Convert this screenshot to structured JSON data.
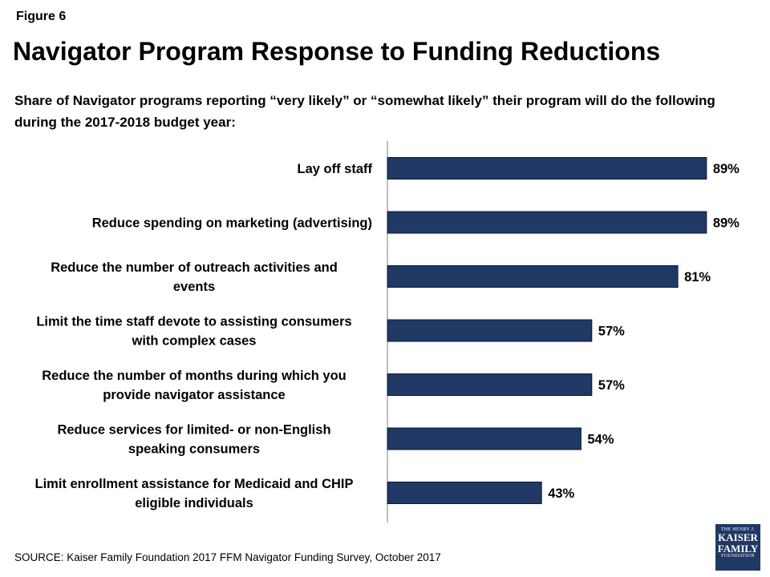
{
  "figure_label": "Figure 6",
  "title": "Navigator Program Response to Funding Reductions",
  "subtitle": "Share of Navigator programs reporting “very likely” or “somewhat likely” their program will do the following during the 2017-2018 budget year:",
  "source": "SOURCE: Kaiser Family Foundation 2017 FFM Navigator Funding Survey, October 2017",
  "logo": {
    "line1": "THE HENRY J.",
    "line2": "KAISER",
    "line3": "FAMILY",
    "line4": "FOUNDATION"
  },
  "colors": {
    "bar": "#1f3864",
    "axis": "#7f7f7f"
  },
  "chart_data": {
    "type": "bar",
    "orientation": "horizontal",
    "title": "Navigator Program Response to Funding Reductions",
    "categories": [
      [
        "Lay off staff"
      ],
      [
        "Reduce spending on marketing (advertising)"
      ],
      [
        "Reduce the number of outreach activities and",
        "events"
      ],
      [
        "Limit the time staff devote to assisting consumers",
        "with complex cases"
      ],
      [
        "Reduce the number of months during which you",
        "provide navigator assistance"
      ],
      [
        "Reduce services for limited- or non-English",
        "speaking consumers"
      ],
      [
        "Limit enrollment assistance for Medicaid and CHIP",
        "eligible individuals"
      ]
    ],
    "values": [
      89,
      89,
      81,
      57,
      57,
      54,
      43
    ],
    "value_labels": [
      "89%",
      "89%",
      "81%",
      "57%",
      "57%",
      "54%",
      "43%"
    ],
    "xlim": [
      0,
      100
    ],
    "grid": false,
    "legend": "none"
  }
}
